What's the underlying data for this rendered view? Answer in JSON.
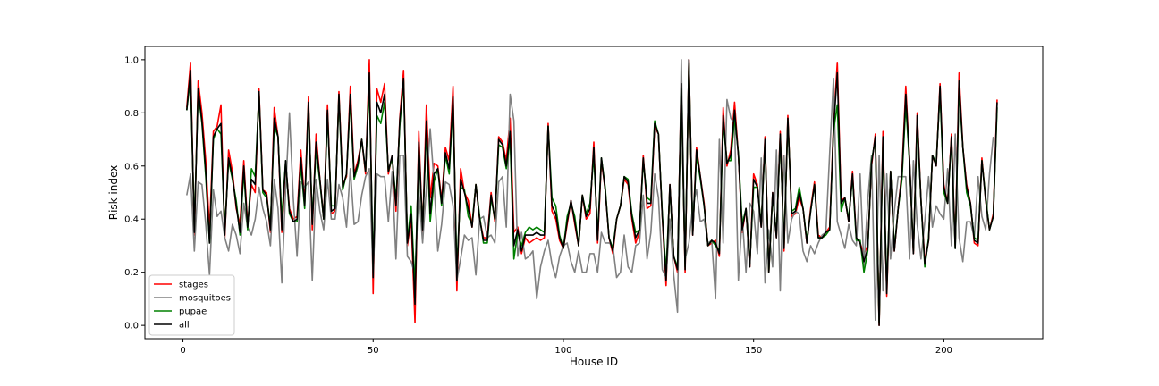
{
  "chart_data": {
    "type": "line",
    "title": "",
    "xlabel": "House ID",
    "ylabel": "Risk index",
    "xlim": [
      -10,
      226
    ],
    "ylim": [
      -0.05,
      1.05
    ],
    "xticks": [
      0,
      50,
      100,
      150,
      200
    ],
    "yticks": [
      0.0,
      0.2,
      0.4,
      0.6,
      0.8,
      1.0
    ],
    "grid": false,
    "legend_position": "lower-left",
    "x_start": 1,
    "series": [
      {
        "name": "stages",
        "color": "#ff0000",
        "values": [
          0.82,
          0.99,
          0.34,
          0.92,
          0.8,
          0.62,
          0.36,
          0.73,
          0.75,
          0.83,
          0.33,
          0.66,
          0.58,
          0.44,
          0.38,
          0.62,
          0.38,
          0.53,
          0.5,
          0.89,
          0.51,
          0.5,
          0.35,
          0.82,
          0.71,
          0.35,
          0.61,
          0.44,
          0.4,
          0.41,
          0.66,
          0.46,
          0.86,
          0.36,
          0.72,
          0.55,
          0.4,
          0.83,
          0.42,
          0.43,
          0.88,
          0.53,
          0.56,
          0.9,
          0.57,
          0.62,
          0.7,
          0.57,
          1.0,
          0.12,
          0.89,
          0.84,
          0.91,
          0.57,
          0.64,
          0.43,
          0.78,
          0.96,
          0.3,
          0.4,
          0.01,
          0.73,
          0.35,
          0.83,
          0.48,
          0.61,
          0.6,
          0.47,
          0.67,
          0.62,
          0.9,
          0.13,
          0.59,
          0.5,
          0.47,
          0.37,
          0.53,
          0.4,
          0.33,
          0.33,
          0.5,
          0.39,
          0.71,
          0.69,
          0.62,
          0.78,
          0.35,
          0.37,
          0.27,
          0.33,
          0.31,
          0.32,
          0.33,
          0.32,
          0.33,
          0.76,
          0.43,
          0.4,
          0.32,
          0.29,
          0.38,
          0.47,
          0.38,
          0.3,
          0.49,
          0.4,
          0.42,
          0.69,
          0.31,
          0.62,
          0.51,
          0.33,
          0.27,
          0.4,
          0.45,
          0.55,
          0.53,
          0.4,
          0.31,
          0.35,
          0.64,
          0.44,
          0.45,
          0.75,
          0.72,
          0.41,
          0.15,
          0.53,
          0.26,
          0.2,
          0.93,
          0.2,
          1.0,
          0.34,
          0.67,
          0.56,
          0.46,
          0.3,
          0.31,
          0.32,
          0.26,
          0.82,
          0.6,
          0.66,
          0.84,
          0.64,
          0.35,
          0.44,
          0.22,
          0.57,
          0.53,
          0.37,
          0.71,
          0.2,
          0.5,
          0.33,
          0.73,
          0.28,
          0.79,
          0.41,
          0.42,
          0.48,
          0.44,
          0.31,
          0.44,
          0.54,
          0.34,
          0.33,
          0.35,
          0.37,
          0.75,
          0.99,
          0.47,
          0.48,
          0.39,
          0.58,
          0.33,
          0.31,
          0.27,
          0.3,
          0.6,
          0.72,
          0.0,
          0.73,
          0.11,
          0.58,
          0.28,
          0.44,
          0.58,
          0.9,
          0.62,
          0.27,
          0.8,
          0.47,
          0.24,
          0.32,
          0.64,
          0.6,
          0.91,
          0.53,
          0.46,
          0.72,
          0.3,
          0.95,
          0.67,
          0.53,
          0.46,
          0.31,
          0.3,
          0.63,
          0.47,
          0.36,
          0.42,
          0.85
        ]
      },
      {
        "name": "mosquitoes",
        "color": "#808080",
        "values": [
          0.49,
          0.57,
          0.28,
          0.54,
          0.53,
          0.38,
          0.19,
          0.51,
          0.41,
          0.43,
          0.33,
          0.28,
          0.38,
          0.34,
          0.27,
          0.46,
          0.37,
          0.34,
          0.4,
          0.52,
          0.44,
          0.39,
          0.3,
          0.55,
          0.44,
          0.16,
          0.51,
          0.8,
          0.48,
          0.26,
          0.54,
          0.52,
          0.54,
          0.17,
          0.55,
          0.43,
          0.36,
          0.55,
          0.4,
          0.4,
          0.53,
          0.48,
          0.37,
          0.59,
          0.38,
          0.39,
          0.49,
          0.56,
          0.59,
          0.19,
          0.57,
          0.56,
          0.56,
          0.39,
          0.58,
          0.25,
          0.64,
          0.64,
          0.26,
          0.24,
          0.19,
          0.51,
          0.31,
          0.52,
          0.74,
          0.54,
          0.28,
          0.38,
          0.54,
          0.53,
          0.45,
          0.17,
          0.25,
          0.34,
          0.32,
          0.33,
          0.19,
          0.4,
          0.41,
          0.33,
          0.34,
          0.31,
          0.54,
          0.56,
          0.37,
          0.87,
          0.77,
          0.26,
          0.35,
          0.25,
          0.26,
          0.28,
          0.1,
          0.22,
          0.28,
          0.32,
          0.23,
          0.18,
          0.26,
          0.3,
          0.31,
          0.24,
          0.2,
          0.28,
          0.2,
          0.2,
          0.27,
          0.27,
          0.2,
          0.35,
          0.31,
          0.31,
          0.3,
          0.18,
          0.2,
          0.34,
          0.22,
          0.2,
          0.3,
          0.31,
          0.49,
          0.25,
          0.35,
          0.57,
          0.48,
          0.21,
          0.18,
          0.4,
          0.19,
          0.05,
          1.0,
          0.25,
          0.31,
          0.45,
          0.51,
          0.39,
          0.4,
          0.31,
          0.32,
          0.1,
          0.7,
          0.31,
          0.85,
          0.78,
          0.76,
          0.17,
          0.41,
          0.2,
          0.46,
          0.43,
          0.27,
          0.63,
          0.16,
          0.36,
          0.22,
          0.66,
          0.13,
          0.64,
          0.31,
          0.4,
          0.43,
          0.42,
          0.28,
          0.24,
          0.3,
          0.27,
          0.31,
          0.34,
          0.35,
          0.65,
          0.93,
          0.39,
          0.34,
          0.29,
          0.38,
          0.32,
          0.3,
          0.57,
          0.22,
          0.47,
          0.64,
          0.02,
          0.64,
          0.13,
          0.57,
          0.25,
          0.43,
          0.56,
          0.56,
          0.56,
          0.25,
          0.62,
          0.38,
          0.25,
          0.39,
          0.56,
          0.37,
          0.45,
          0.42,
          0.4,
          0.59,
          0.3,
          0.72,
          0.33,
          0.24,
          0.39,
          0.39,
          0.33,
          0.56,
          0.41,
          0.36,
          0.57,
          0.71
        ]
      },
      {
        "name": "pupae",
        "color": "#008000",
        "values": [
          0.81,
          0.93,
          0.37,
          0.88,
          0.76,
          0.56,
          0.31,
          0.7,
          0.74,
          0.72,
          0.36,
          0.62,
          0.55,
          0.47,
          0.34,
          0.58,
          0.36,
          0.59,
          0.56,
          0.87,
          0.5,
          0.48,
          0.38,
          0.75,
          0.71,
          0.4,
          0.62,
          0.42,
          0.39,
          0.39,
          0.6,
          0.44,
          0.83,
          0.4,
          0.66,
          0.54,
          0.4,
          0.79,
          0.45,
          0.45,
          0.86,
          0.51,
          0.57,
          0.85,
          0.55,
          0.6,
          0.7,
          0.58,
          0.91,
          0.22,
          0.79,
          0.76,
          0.84,
          0.58,
          0.63,
          0.47,
          0.75,
          0.92,
          0.32,
          0.45,
          0.14,
          0.66,
          0.37,
          0.73,
          0.39,
          0.54,
          0.59,
          0.45,
          0.64,
          0.57,
          0.84,
          0.21,
          0.52,
          0.51,
          0.41,
          0.38,
          0.53,
          0.41,
          0.31,
          0.31,
          0.48,
          0.4,
          0.68,
          0.67,
          0.59,
          0.7,
          0.25,
          0.35,
          0.3,
          0.35,
          0.37,
          0.36,
          0.37,
          0.36,
          0.35,
          0.75,
          0.48,
          0.45,
          0.34,
          0.29,
          0.41,
          0.46,
          0.41,
          0.3,
          0.49,
          0.42,
          0.46,
          0.64,
          0.34,
          0.63,
          0.52,
          0.33,
          0.29,
          0.4,
          0.45,
          0.56,
          0.55,
          0.42,
          0.35,
          0.36,
          0.62,
          0.48,
          0.47,
          0.77,
          0.72,
          0.42,
          0.2,
          0.52,
          0.26,
          0.22,
          0.89,
          0.22,
          0.99,
          0.35,
          0.64,
          0.55,
          0.45,
          0.3,
          0.32,
          0.3,
          0.28,
          0.76,
          0.62,
          0.62,
          0.78,
          0.65,
          0.38,
          0.44,
          0.23,
          0.52,
          0.52,
          0.38,
          0.69,
          0.2,
          0.49,
          0.34,
          0.71,
          0.3,
          0.77,
          0.43,
          0.44,
          0.52,
          0.44,
          0.32,
          0.43,
          0.53,
          0.33,
          0.33,
          0.34,
          0.36,
          0.73,
          0.83,
          0.43,
          0.48,
          0.4,
          0.56,
          0.32,
          0.32,
          0.2,
          0.28,
          0.62,
          0.7,
          0.01,
          0.69,
          0.14,
          0.58,
          0.29,
          0.44,
          0.55,
          0.83,
          0.61,
          0.28,
          0.76,
          0.47,
          0.22,
          0.33,
          0.64,
          0.61,
          0.88,
          0.5,
          0.46,
          0.7,
          0.29,
          0.89,
          0.67,
          0.5,
          0.45,
          0.33,
          0.32,
          0.62,
          0.48,
          0.36,
          0.41,
          0.82
        ]
      },
      {
        "name": "all",
        "color": "#000000",
        "values": [
          0.81,
          0.96,
          0.35,
          0.89,
          0.77,
          0.58,
          0.31,
          0.71,
          0.74,
          0.76,
          0.34,
          0.63,
          0.56,
          0.45,
          0.35,
          0.6,
          0.37,
          0.55,
          0.53,
          0.88,
          0.51,
          0.49,
          0.36,
          0.78,
          0.71,
          0.36,
          0.62,
          0.43,
          0.39,
          0.4,
          0.63,
          0.45,
          0.84,
          0.38,
          0.69,
          0.55,
          0.4,
          0.81,
          0.43,
          0.44,
          0.87,
          0.52,
          0.57,
          0.87,
          0.56,
          0.61,
          0.7,
          0.58,
          0.95,
          0.18,
          0.84,
          0.8,
          0.87,
          0.58,
          0.64,
          0.45,
          0.77,
          0.93,
          0.31,
          0.42,
          0.08,
          0.69,
          0.36,
          0.77,
          0.42,
          0.57,
          0.59,
          0.46,
          0.65,
          0.59,
          0.86,
          0.17,
          0.55,
          0.5,
          0.44,
          0.37,
          0.53,
          0.4,
          0.32,
          0.32,
          0.49,
          0.4,
          0.7,
          0.68,
          0.6,
          0.73,
          0.3,
          0.36,
          0.28,
          0.34,
          0.34,
          0.34,
          0.35,
          0.34,
          0.34,
          0.75,
          0.45,
          0.42,
          0.33,
          0.29,
          0.39,
          0.47,
          0.39,
          0.3,
          0.49,
          0.41,
          0.44,
          0.67,
          0.32,
          0.63,
          0.51,
          0.33,
          0.28,
          0.4,
          0.45,
          0.56,
          0.54,
          0.41,
          0.33,
          0.36,
          0.63,
          0.46,
          0.46,
          0.76,
          0.72,
          0.41,
          0.17,
          0.53,
          0.26,
          0.21,
          0.91,
          0.21,
          1.0,
          0.34,
          0.66,
          0.56,
          0.45,
          0.3,
          0.32,
          0.31,
          0.27,
          0.79,
          0.61,
          0.64,
          0.81,
          0.64,
          0.36,
          0.44,
          0.22,
          0.55,
          0.52,
          0.37,
          0.7,
          0.2,
          0.5,
          0.33,
          0.72,
          0.29,
          0.78,
          0.42,
          0.43,
          0.5,
          0.44,
          0.31,
          0.43,
          0.53,
          0.33,
          0.33,
          0.35,
          0.36,
          0.74,
          0.95,
          0.46,
          0.48,
          0.39,
          0.57,
          0.33,
          0.31,
          0.24,
          0.29,
          0.61,
          0.71,
          0.0,
          0.71,
          0.12,
          0.58,
          0.28,
          0.44,
          0.57,
          0.87,
          0.62,
          0.27,
          0.79,
          0.47,
          0.23,
          0.32,
          0.64,
          0.6,
          0.9,
          0.52,
          0.46,
          0.71,
          0.29,
          0.92,
          0.67,
          0.52,
          0.46,
          0.32,
          0.31,
          0.62,
          0.47,
          0.36,
          0.41,
          0.84
        ]
      }
    ]
  }
}
